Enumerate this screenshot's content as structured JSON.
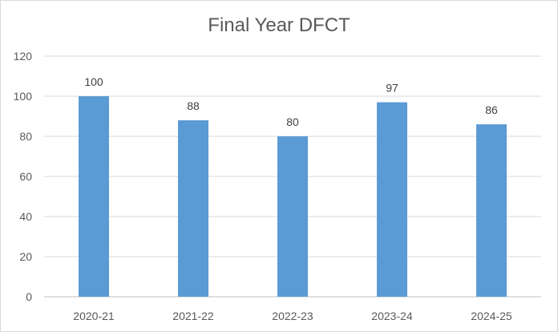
{
  "chart_data": {
    "type": "bar",
    "title": "Final Year DFCT",
    "xlabel": "",
    "ylabel": "",
    "categories": [
      "2020-21",
      "2021-22",
      "2022-23",
      "2023-24",
      "2024-25"
    ],
    "values": [
      100,
      88,
      80,
      97,
      86
    ],
    "data_labels": [
      "100",
      "88",
      "80",
      "97",
      "86"
    ],
    "ylim": [
      0,
      120
    ],
    "yticks": [
      0,
      20,
      40,
      60,
      80,
      100,
      120
    ],
    "ytick_labels": [
      "0",
      "20",
      "40",
      "60",
      "80",
      "100",
      "120"
    ],
    "grid": true,
    "legend": "none",
    "bar_color": "#5b9bd5"
  }
}
